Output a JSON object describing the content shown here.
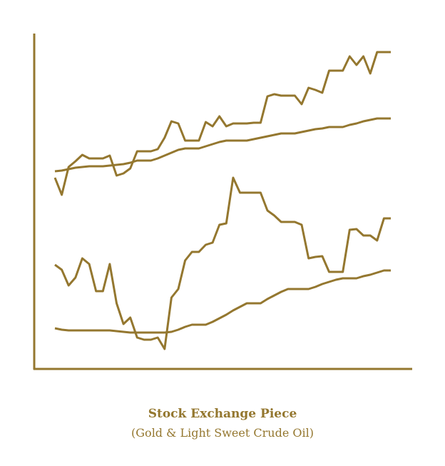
{
  "chart_data": {
    "type": "line",
    "title": "Stock Exchange Piece",
    "subtitle": "(Gold & Light Sweet Crude Oil)",
    "ylim": [
      0,
      470
    ],
    "series": [
      {
        "color": "#94772f",
        "values": [
          268,
          244,
          283,
          291,
          300,
          295,
          295,
          295,
          299,
          271,
          274,
          281,
          305,
          305,
          305,
          308,
          324,
          347,
          344,
          320,
          320,
          320,
          346,
          340,
          354,
          340,
          344,
          344,
          344,
          345,
          345,
          382,
          385,
          383,
          383,
          383,
          371,
          394,
          391,
          387,
          418,
          418,
          418,
          438,
          426,
          438,
          414,
          444,
          444,
          444
        ]
      },
      {
        "color": "#94772f",
        "values": [
          277,
          278,
          280,
          282,
          283,
          284,
          284,
          284,
          285,
          286,
          287,
          289,
          292,
          292,
          292,
          295,
          299,
          303,
          307,
          309,
          309,
          309,
          312,
          315,
          318,
          320,
          320,
          320,
          320,
          322,
          324,
          326,
          328,
          330,
          330,
          330,
          332,
          334,
          336,
          337,
          339,
          339,
          339,
          342,
          344,
          347,
          349,
          351,
          351,
          351
        ]
      },
      {
        "color": "#94772f",
        "values": [
          146,
          139,
          117,
          128,
          155,
          147,
          109,
          109,
          147,
          92,
          63,
          72,
          44,
          41,
          41,
          44,
          28,
          100,
          112,
          152,
          164,
          164,
          174,
          177,
          202,
          204,
          268,
          247,
          247,
          247,
          247,
          222,
          215,
          206,
          206,
          206,
          202,
          155,
          157,
          158,
          136,
          136,
          136,
          195,
          196,
          187,
          187,
          180,
          211,
          211
        ]
      },
      {
        "color": "#94772f",
        "values": [
          57,
          55,
          54,
          54,
          54,
          54,
          54,
          54,
          54,
          53,
          52,
          51,
          51,
          51,
          51,
          51,
          51,
          52,
          55,
          59,
          62,
          62,
          62,
          66,
          71,
          76,
          82,
          87,
          92,
          92,
          92,
          98,
          103,
          108,
          112,
          112,
          112,
          112,
          115,
          119,
          122,
          125,
          127,
          127,
          127,
          130,
          132,
          135,
          138,
          138
        ]
      }
    ]
  }
}
